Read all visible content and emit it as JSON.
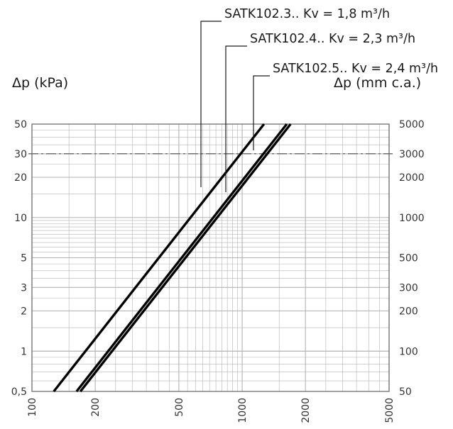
{
  "chart_data": {
    "type": "line",
    "x_scale": "log",
    "y_scale": "log",
    "xlim": [
      100,
      5000
    ],
    "ylim": [
      0.5,
      50
    ],
    "x_ticks": [
      100,
      200,
      500,
      1000,
      2000,
      5000
    ],
    "y_ticks": [
      0.5,
      1,
      2,
      3,
      5,
      10,
      20,
      30,
      50
    ],
    "y_tick_labels": [
      "0,5",
      "1",
      "2",
      "3",
      "5",
      "10",
      "20",
      "30",
      "50"
    ],
    "y2_ticks": [
      50,
      100,
      200,
      300,
      500,
      1000,
      2000,
      3000,
      5000
    ],
    "y2_tick_labels": [
      "50",
      "100",
      "200",
      "300",
      "500",
      "1000",
      "2000",
      "3000",
      "5000"
    ],
    "ylabel_left": "Δp (kPa)",
    "ylabel_right": "Δp (mm c.a.)",
    "grid": true,
    "reference_line": {
      "y": 30,
      "style": "dash-dot"
    },
    "series": [
      {
        "name": "SATK102.3.. Kv = 1,8 m³/h",
        "kv": 1.8,
        "x": [
          127,
          1270
        ],
        "y": [
          0.5,
          50
        ]
      },
      {
        "name": "SATK102.4.. Kv = 2,3 m³/h",
        "kv": 2.3,
        "x": [
          163,
          1630
        ],
        "y": [
          0.5,
          50
        ]
      },
      {
        "name": "SATK102.5.. Kv = 2,4 m³/h",
        "kv": 2.4,
        "x": [
          170,
          1700
        ],
        "y": [
          0.5,
          50
        ]
      }
    ],
    "colors": {
      "line": "#000000",
      "grid": "#b3b3b3",
      "frame": "#6f6f6f",
      "reference": "#666666"
    }
  }
}
